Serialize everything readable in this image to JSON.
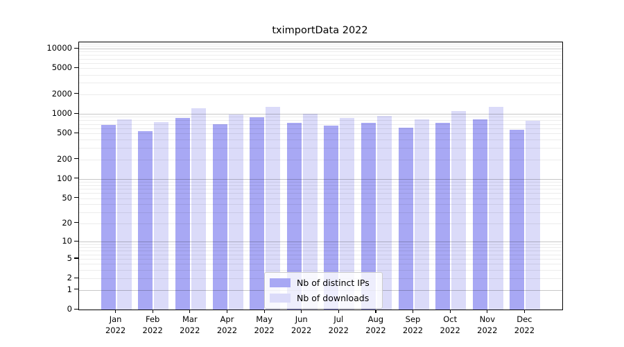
{
  "title": "tximportData 2022",
  "legend": {
    "items": [
      {
        "label": "Nb of distinct IPs",
        "color": "#a8a8f4"
      },
      {
        "label": "Nb of downloads",
        "color": "#dbdbf9"
      }
    ]
  },
  "chart_data": {
    "type": "bar",
    "title": "tximportData 2022",
    "xlabel": "",
    "ylabel": "",
    "yscale": "log1p",
    "ylim": [
      0,
      12500
    ],
    "yticks": [
      0,
      1,
      2,
      5,
      10,
      20,
      50,
      100,
      200,
      500,
      1000,
      2000,
      5000,
      10000
    ],
    "major_grid_values": [
      1,
      10,
      100,
      1000,
      10000
    ],
    "minor_grid_values": [
      2,
      3,
      4,
      5,
      6,
      7,
      8,
      9,
      20,
      30,
      40,
      50,
      60,
      70,
      80,
      90,
      200,
      300,
      400,
      500,
      600,
      700,
      800,
      900,
      2000,
      3000,
      4000,
      5000,
      6000,
      7000,
      8000,
      9000,
      11000,
      12000
    ],
    "grid": true,
    "legend_position": "lower center",
    "categories": [
      "Jan 2022",
      "Feb 2022",
      "Mar 2022",
      "Apr 2022",
      "May 2022",
      "Jun 2022",
      "Jul 2022",
      "Aug 2022",
      "Sep 2022",
      "Oct 2022",
      "Nov 2022",
      "Dec 2022"
    ],
    "series": [
      {
        "name": "Nb of distinct IPs",
        "color": "#a8a8f4",
        "values": [
          670,
          545,
          855,
          690,
          880,
          735,
          660,
          725,
          615,
          730,
          825,
          565
        ]
      },
      {
        "name": "Nb of downloads",
        "color": "#dbdbf9",
        "values": [
          825,
          750,
          1220,
          970,
          1270,
          1000,
          875,
          940,
          830,
          1110,
          1270,
          775
        ]
      }
    ]
  }
}
